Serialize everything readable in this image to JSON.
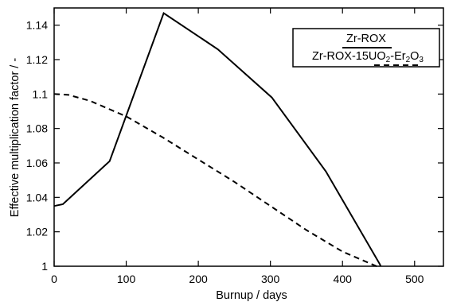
{
  "chart_data": {
    "type": "line",
    "xlabel": "Burnup / days",
    "ylabel": "Effective multiplication factor / -",
    "xlim": [
      0,
      540
    ],
    "ylim": [
      1.0,
      1.15
    ],
    "x_ticks": [
      "0",
      "100",
      "200",
      "300",
      "400",
      "500"
    ],
    "y_ticks": [
      "1",
      "1.02",
      "1.04",
      "1.06",
      "1.08",
      "1.1",
      "1.12",
      "1.14"
    ],
    "x_tick_values": [
      0,
      100,
      200,
      300,
      400,
      500
    ],
    "y_tick_values": [
      1.0,
      1.02,
      1.04,
      1.06,
      1.08,
      1.1,
      1.12,
      1.14
    ],
    "grid": false,
    "legend_position": "top-right",
    "series": [
      {
        "name": "Zr-ROX",
        "style": "solid",
        "color": "#000000",
        "x": [
          0,
          12,
          77,
          152,
          227,
          302,
          377,
          452,
          453
        ],
        "y": [
          1.035,
          1.036,
          1.061,
          1.147,
          1.126,
          1.098,
          1.055,
          1.001,
          1.0
        ]
      },
      {
        "name_parts": [
          "Zr-ROX-15UO",
          "2",
          "-Er",
          "2",
          "O",
          "3"
        ],
        "style": "dashed",
        "color": "#000000",
        "x": [
          0,
          20,
          50,
          100,
          150,
          200,
          250,
          300,
          350,
          400,
          450
        ],
        "y": [
          1.1,
          1.0995,
          1.096,
          1.087,
          1.075,
          1.062,
          1.049,
          1.035,
          1.021,
          1.0085,
          0.9995
        ]
      }
    ]
  }
}
